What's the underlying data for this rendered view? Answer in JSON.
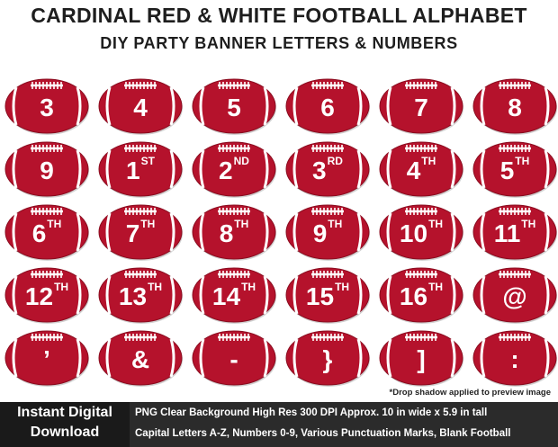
{
  "header": {
    "title": "CARDINAL RED & WHITE FOOTBALL ALPHABET",
    "subtitle": "DIY PARTY BANNER LETTERS & NUMBERS"
  },
  "colors": {
    "football_red": "#b5122c",
    "football_dark": "#8a0c1f",
    "lace_white": "#ffffff",
    "footer_bg": "#2b2b2b",
    "download_bg": "#1a1a1a"
  },
  "footballs": [
    {
      "main": "3",
      "sup": ""
    },
    {
      "main": "4",
      "sup": ""
    },
    {
      "main": "5",
      "sup": ""
    },
    {
      "main": "6",
      "sup": ""
    },
    {
      "main": "7",
      "sup": ""
    },
    {
      "main": "8",
      "sup": ""
    },
    {
      "main": "9",
      "sup": ""
    },
    {
      "main": "1",
      "sup": "ST"
    },
    {
      "main": "2",
      "sup": "ND"
    },
    {
      "main": "3",
      "sup": "RD"
    },
    {
      "main": "4",
      "sup": "TH"
    },
    {
      "main": "5",
      "sup": "TH"
    },
    {
      "main": "6",
      "sup": "TH"
    },
    {
      "main": "7",
      "sup": "TH"
    },
    {
      "main": "8",
      "sup": "TH"
    },
    {
      "main": "9",
      "sup": "TH"
    },
    {
      "main": "10",
      "sup": "TH"
    },
    {
      "main": "11",
      "sup": "TH"
    },
    {
      "main": "12",
      "sup": "TH"
    },
    {
      "main": "13",
      "sup": "TH"
    },
    {
      "main": "14",
      "sup": "TH"
    },
    {
      "main": "15",
      "sup": "TH"
    },
    {
      "main": "16",
      "sup": "TH"
    },
    {
      "main": "@",
      "sup": ""
    },
    {
      "main": "’",
      "sup": ""
    },
    {
      "main": "&",
      "sup": ""
    },
    {
      "main": "-",
      "sup": ""
    },
    {
      "main": "}",
      "sup": ""
    },
    {
      "main": "]",
      "sup": ""
    },
    {
      "main": ":",
      "sup": ""
    }
  ],
  "note": "*Drop shadow applied to preview image",
  "footer": {
    "download_line1": "Instant Digital",
    "download_line2": "Download",
    "info_line1": "PNG Clear Background   High Res 300 DPI   Approx. 10 in wide x 5.9 in tall",
    "info_line2": "Capital  Letters A-Z, Numbers 0-9, Various Punctuation Marks, Blank Football"
  }
}
